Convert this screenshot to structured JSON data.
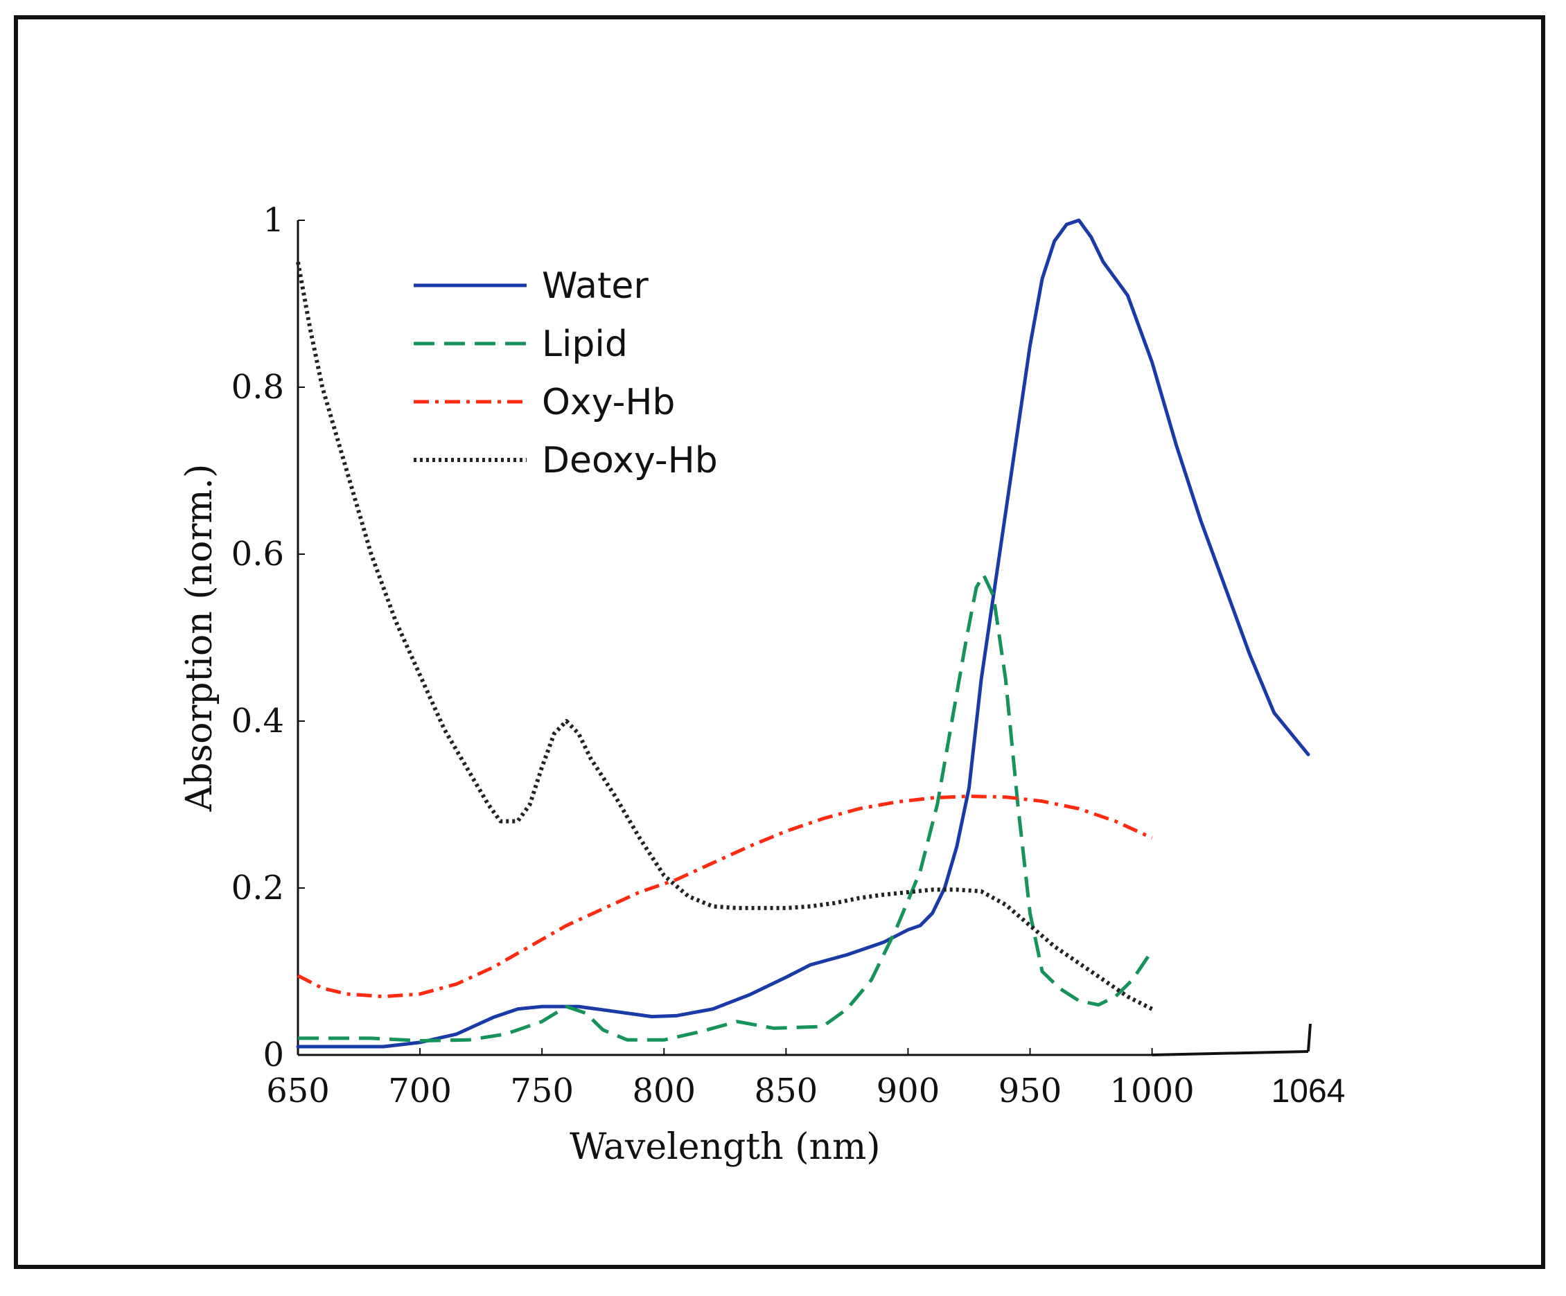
{
  "chart_data": {
    "type": "line",
    "title": "",
    "xlabel": "Wavelength (nm)",
    "ylabel": "Absorption (norm.)",
    "xlim": [
      650,
      1064
    ],
    "ylim": [
      0,
      1
    ],
    "grid": false,
    "legend_position": "top-left",
    "x_ticks": [
      {
        "value": 650,
        "label": "650"
      },
      {
        "value": 700,
        "label": "700"
      },
      {
        "value": 750,
        "label": "750"
      },
      {
        "value": 800,
        "label": "800"
      },
      {
        "value": 850,
        "label": "850"
      },
      {
        "value": 900,
        "label": "900"
      },
      {
        "value": 950,
        "label": "950"
      },
      {
        "value": 1000,
        "label": "1000"
      },
      {
        "value": 1064,
        "label": "1064"
      }
    ],
    "y_ticks": [
      {
        "value": 0,
        "label": "0"
      },
      {
        "value": 0.2,
        "label": "0.2"
      },
      {
        "value": 0.4,
        "label": "0.4"
      },
      {
        "value": 0.6,
        "label": "0.6"
      },
      {
        "value": 0.8,
        "label": "0.8"
      },
      {
        "value": 1,
        "label": "1"
      }
    ],
    "series": [
      {
        "name": "Water",
        "color": "#1a3aa8",
        "dash": "solid",
        "points": [
          [
            650,
            0.01
          ],
          [
            670,
            0.01
          ],
          [
            685,
            0.01
          ],
          [
            700,
            0.015
          ],
          [
            715,
            0.025
          ],
          [
            730,
            0.045
          ],
          [
            740,
            0.055
          ],
          [
            750,
            0.058
          ],
          [
            765,
            0.058
          ],
          [
            780,
            0.052
          ],
          [
            795,
            0.046
          ],
          [
            805,
            0.047
          ],
          [
            820,
            0.055
          ],
          [
            835,
            0.072
          ],
          [
            850,
            0.093
          ],
          [
            860,
            0.108
          ],
          [
            875,
            0.12
          ],
          [
            890,
            0.135
          ],
          [
            900,
            0.15
          ],
          [
            905,
            0.155
          ],
          [
            910,
            0.17
          ],
          [
            915,
            0.2
          ],
          [
            920,
            0.25
          ],
          [
            925,
            0.32
          ],
          [
            930,
            0.45
          ],
          [
            935,
            0.55
          ],
          [
            940,
            0.65
          ],
          [
            945,
            0.75
          ],
          [
            950,
            0.85
          ],
          [
            955,
            0.93
          ],
          [
            960,
            0.975
          ],
          [
            965,
            0.995
          ],
          [
            970,
            1.0
          ],
          [
            975,
            0.98
          ],
          [
            980,
            0.95
          ],
          [
            985,
            0.93
          ],
          [
            990,
            0.91
          ],
          [
            995,
            0.87
          ],
          [
            1000,
            0.83
          ],
          [
            1010,
            0.73
          ],
          [
            1020,
            0.64
          ],
          [
            1030,
            0.56
          ],
          [
            1040,
            0.48
          ],
          [
            1050,
            0.41
          ],
          [
            1064,
            0.36
          ]
        ]
      },
      {
        "name": "Lipid",
        "color": "#15935a",
        "dash": "dashed",
        "points": [
          [
            650,
            0.02
          ],
          [
            680,
            0.02
          ],
          [
            700,
            0.017
          ],
          [
            720,
            0.018
          ],
          [
            735,
            0.025
          ],
          [
            750,
            0.04
          ],
          [
            760,
            0.058
          ],
          [
            768,
            0.05
          ],
          [
            775,
            0.03
          ],
          [
            785,
            0.018
          ],
          [
            800,
            0.018
          ],
          [
            815,
            0.028
          ],
          [
            830,
            0.04
          ],
          [
            845,
            0.032
          ],
          [
            865,
            0.034
          ],
          [
            875,
            0.055
          ],
          [
            885,
            0.09
          ],
          [
            895,
            0.15
          ],
          [
            905,
            0.22
          ],
          [
            912,
            0.3
          ],
          [
            918,
            0.4
          ],
          [
            924,
            0.5
          ],
          [
            928,
            0.56
          ],
          [
            931,
            0.575
          ],
          [
            935,
            0.55
          ],
          [
            940,
            0.45
          ],
          [
            945,
            0.3
          ],
          [
            950,
            0.17
          ],
          [
            955,
            0.1
          ],
          [
            962,
            0.08
          ],
          [
            970,
            0.065
          ],
          [
            978,
            0.06
          ],
          [
            985,
            0.07
          ],
          [
            992,
            0.09
          ],
          [
            1000,
            0.125
          ]
        ]
      },
      {
        "name": "Oxy-Hb",
        "color": "#ff2a10",
        "dash": "dashdot",
        "points": [
          [
            650,
            0.095
          ],
          [
            660,
            0.08
          ],
          [
            670,
            0.073
          ],
          [
            685,
            0.07
          ],
          [
            700,
            0.073
          ],
          [
            715,
            0.085
          ],
          [
            730,
            0.105
          ],
          [
            745,
            0.13
          ],
          [
            760,
            0.155
          ],
          [
            775,
            0.175
          ],
          [
            790,
            0.195
          ],
          [
            805,
            0.21
          ],
          [
            820,
            0.23
          ],
          [
            835,
            0.25
          ],
          [
            850,
            0.268
          ],
          [
            865,
            0.283
          ],
          [
            880,
            0.295
          ],
          [
            895,
            0.303
          ],
          [
            910,
            0.308
          ],
          [
            925,
            0.31
          ],
          [
            940,
            0.309
          ],
          [
            955,
            0.304
          ],
          [
            970,
            0.295
          ],
          [
            985,
            0.28
          ],
          [
            1000,
            0.26
          ]
        ]
      },
      {
        "name": "Deoxy-Hb",
        "color": "#222222",
        "dash": "dotted",
        "points": [
          [
            650,
            0.95
          ],
          [
            655,
            0.87
          ],
          [
            660,
            0.8
          ],
          [
            670,
            0.7
          ],
          [
            680,
            0.6
          ],
          [
            690,
            0.52
          ],
          [
            700,
            0.455
          ],
          [
            710,
            0.39
          ],
          [
            720,
            0.34
          ],
          [
            728,
            0.3
          ],
          [
            733,
            0.28
          ],
          [
            740,
            0.28
          ],
          [
            745,
            0.3
          ],
          [
            750,
            0.345
          ],
          [
            755,
            0.385
          ],
          [
            760,
            0.4
          ],
          [
            765,
            0.385
          ],
          [
            770,
            0.355
          ],
          [
            780,
            0.31
          ],
          [
            790,
            0.26
          ],
          [
            800,
            0.215
          ],
          [
            810,
            0.19
          ],
          [
            820,
            0.178
          ],
          [
            830,
            0.176
          ],
          [
            840,
            0.176
          ],
          [
            850,
            0.176
          ],
          [
            860,
            0.178
          ],
          [
            870,
            0.182
          ],
          [
            880,
            0.188
          ],
          [
            890,
            0.192
          ],
          [
            900,
            0.195
          ],
          [
            910,
            0.198
          ],
          [
            920,
            0.198
          ],
          [
            930,
            0.196
          ],
          [
            940,
            0.18
          ],
          [
            950,
            0.155
          ],
          [
            960,
            0.13
          ],
          [
            970,
            0.11
          ],
          [
            980,
            0.09
          ],
          [
            990,
            0.07
          ],
          [
            1000,
            0.055
          ]
        ]
      }
    ]
  }
}
